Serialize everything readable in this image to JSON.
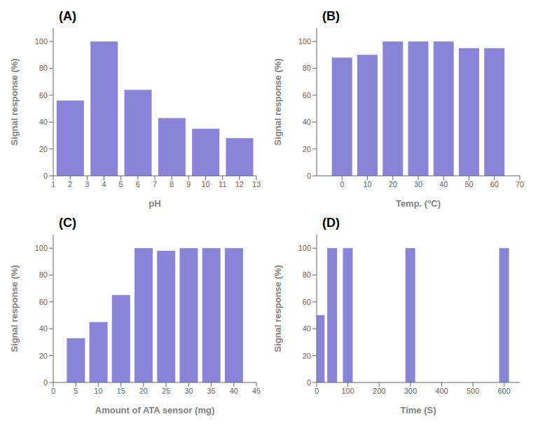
{
  "chart_data": [
    {
      "type": "bar",
      "annotations": [
        "(A)"
      ],
      "x": [
        2,
        4,
        6,
        8,
        10,
        12
      ],
      "values": [
        56,
        100,
        64,
        43,
        35,
        28
      ],
      "xlabel": "pH",
      "ylabel": "Signal response (%)",
      "xlim": [
        1,
        13
      ],
      "ylim": [
        0,
        110
      ],
      "xticks": [
        1,
        2,
        3,
        4,
        5,
        6,
        7,
        8,
        9,
        10,
        11,
        12,
        13
      ],
      "yticks": [
        0,
        20,
        40,
        60,
        80,
        100
      ],
      "color": "#8884d8",
      "grid": false
    },
    {
      "type": "bar",
      "annotations": [
        "(B)"
      ],
      "x": [
        0,
        10,
        20,
        30,
        40,
        50,
        60
      ],
      "values": [
        88,
        90,
        100,
        100,
        100,
        95,
        95
      ],
      "xlabel": "Temp. (°C)",
      "ylabel": "Signal response (%)",
      "xlim": [
        -10,
        70
      ],
      "ylim": [
        0,
        110
      ],
      "xticks": [
        0,
        10,
        20,
        30,
        40,
        50,
        60,
        70
      ],
      "yticks": [
        0,
        20,
        40,
        60,
        80,
        100
      ],
      "color": "#8884d8",
      "grid": false
    },
    {
      "type": "bar",
      "annotations": [
        "(C)"
      ],
      "x": [
        5,
        10,
        15,
        20,
        25,
        30,
        35,
        40
      ],
      "values": [
        33,
        45,
        65,
        100,
        98,
        100,
        100,
        100
      ],
      "xlabel": "Amount of  ATA sensor (mg)",
      "ylabel": "Signal response (%)",
      "xlim": [
        0,
        45
      ],
      "ylim": [
        0,
        110
      ],
      "xticks": [
        0,
        5,
        10,
        15,
        20,
        25,
        30,
        35,
        40,
        45
      ],
      "yticks": [
        0,
        20,
        40,
        60,
        80,
        100
      ],
      "color": "#8884d8",
      "grid": false
    },
    {
      "type": "bar",
      "annotations": [
        "(D)"
      ],
      "x": [
        10,
        50,
        100,
        300,
        600
      ],
      "values": [
        50,
        100,
        100,
        100,
        100
      ],
      "xlabel": "Time (S)",
      "ylabel": "Signal response (%)",
      "xlim": [
        0,
        650
      ],
      "ylim": [
        0,
        110
      ],
      "xticks": [
        0,
        100,
        200,
        300,
        400,
        500,
        600
      ],
      "yticks": [
        0,
        20,
        40,
        60,
        80,
        100
      ],
      "color": "#8884d8",
      "grid": false
    }
  ]
}
